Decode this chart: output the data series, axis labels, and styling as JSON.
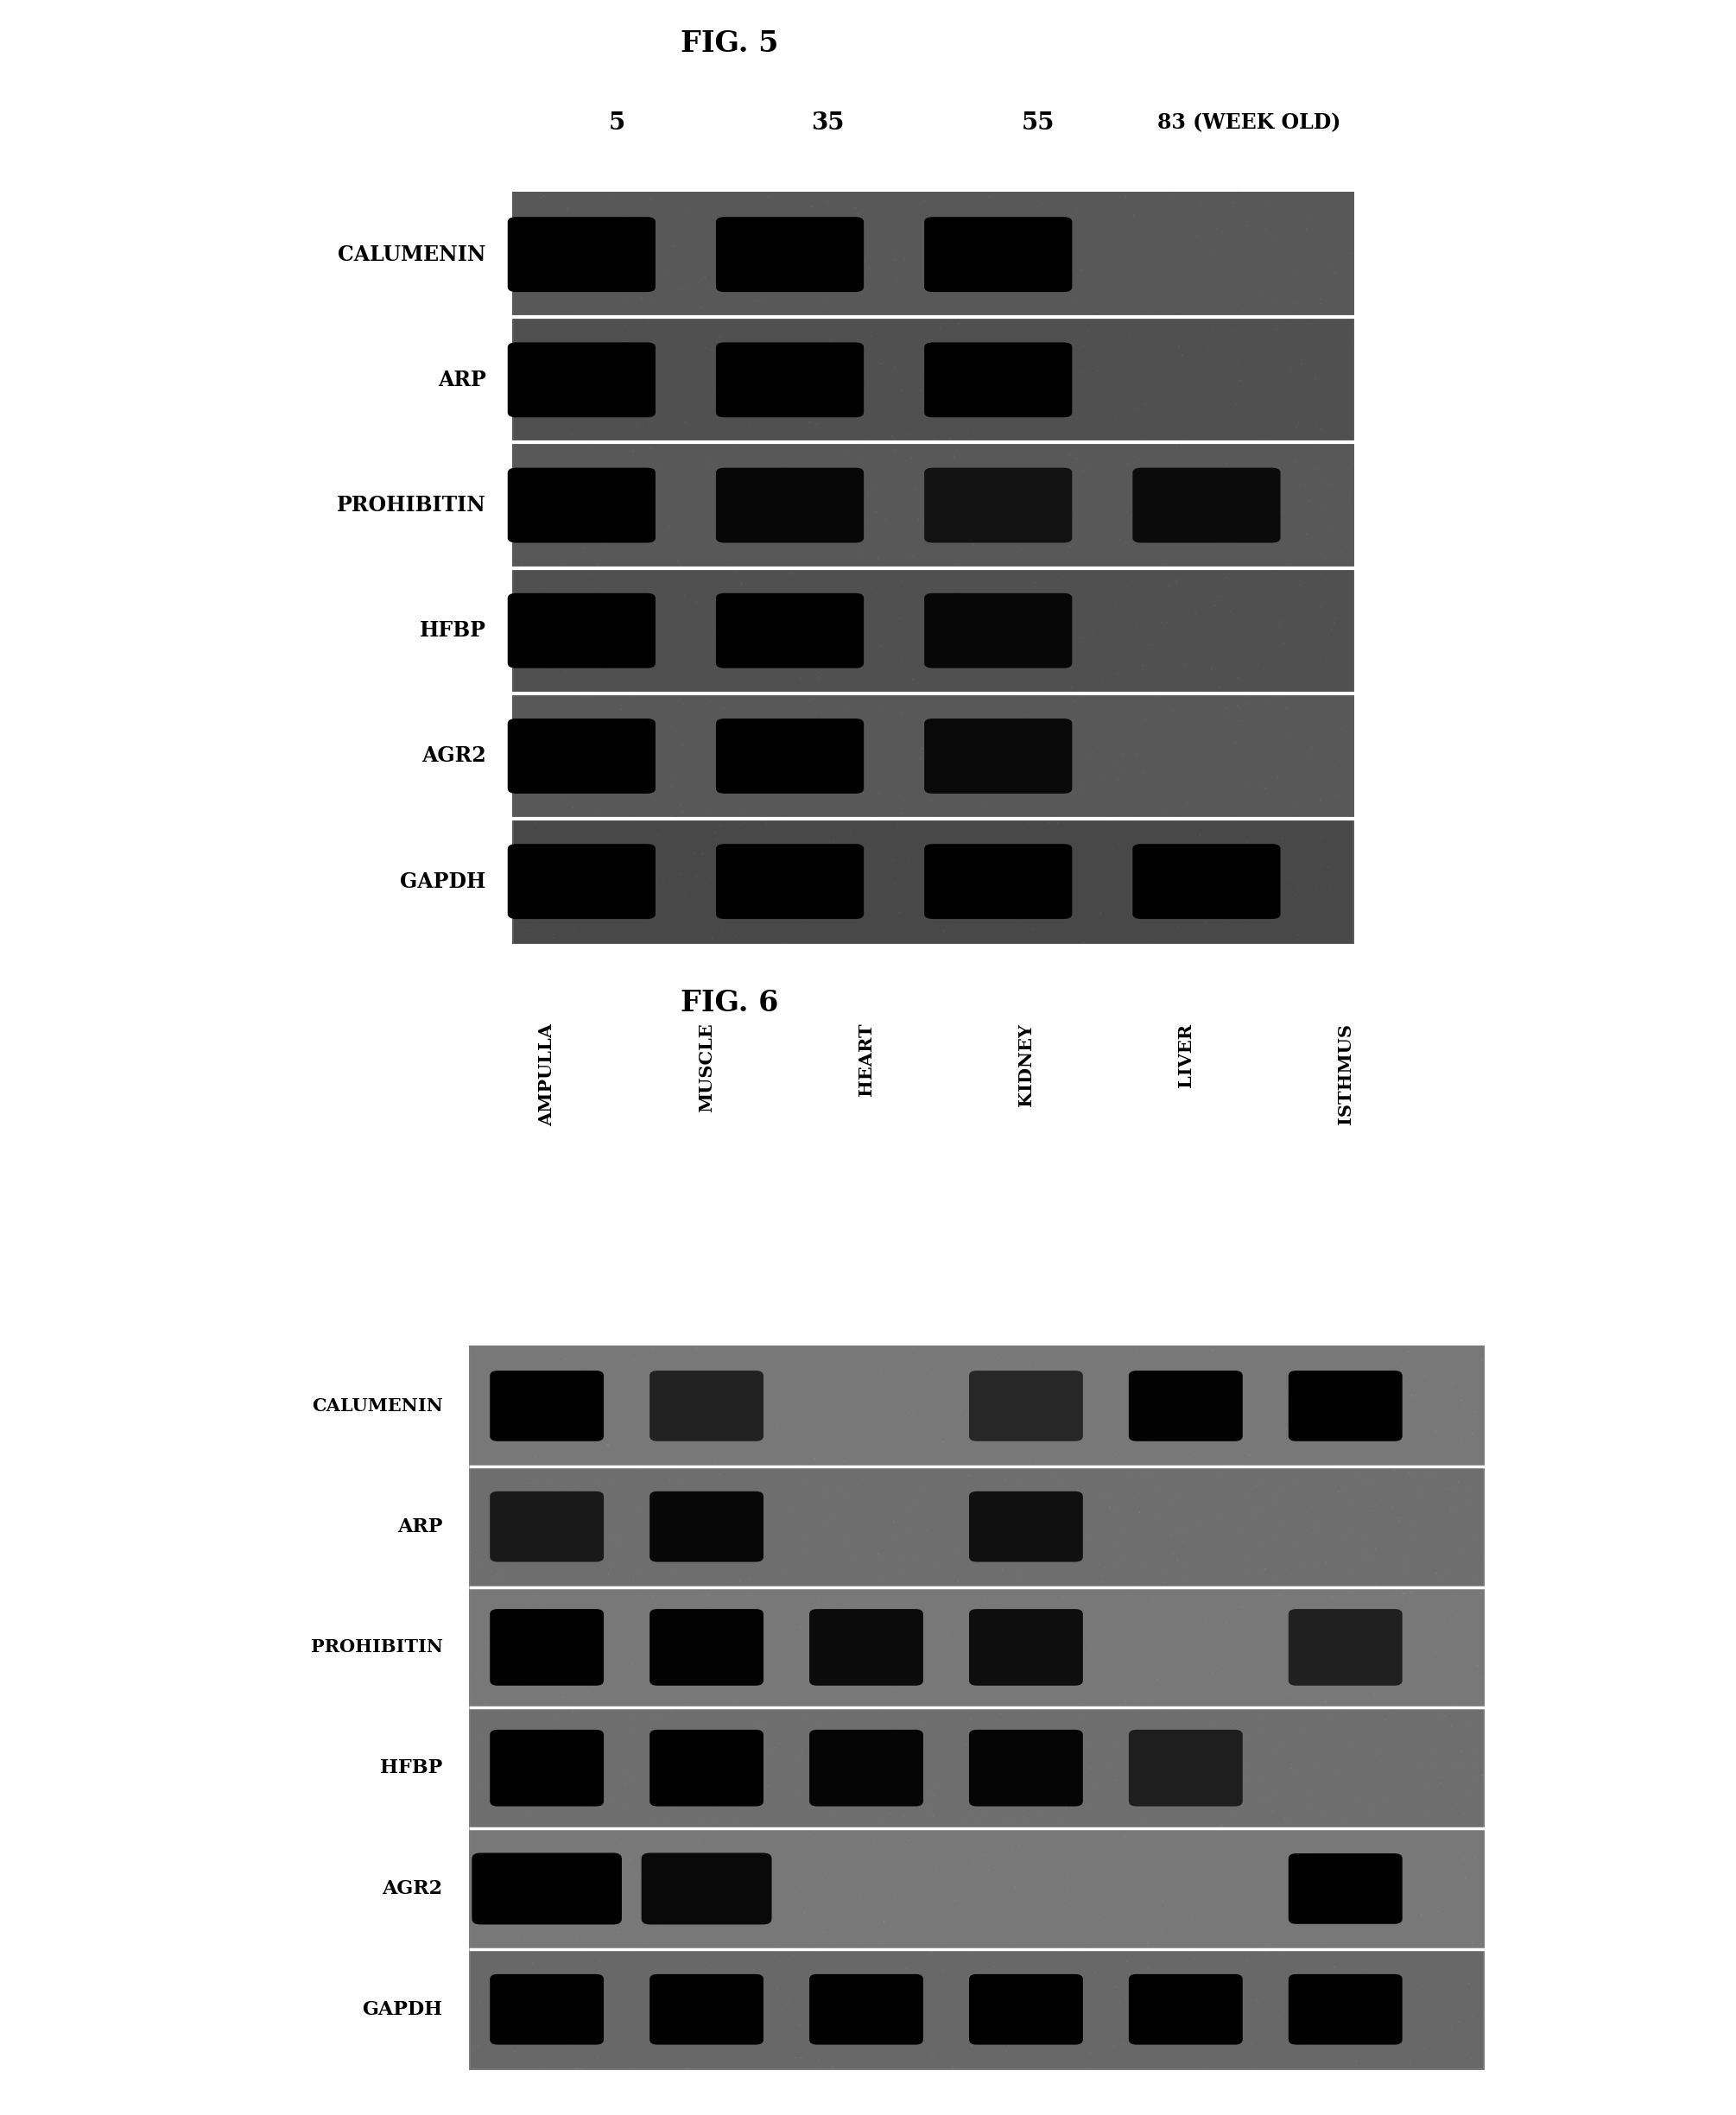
{
  "fig5_title": "FIG. 5",
  "fig6_title": "FIG. 6",
  "fig5_col_labels": [
    "5",
    "35",
    "55",
    "83 (WEEK OLD)"
  ],
  "fig5_row_labels": [
    "CALUMENIN",
    "ARP",
    "PROHIBITIN",
    "HFBP",
    "AGR2",
    "GAPDH"
  ],
  "fig6_col_labels": [
    "AMPULLA",
    "MUSCLE",
    "HEART",
    "KIDNEY",
    "LIVER",
    "ISTHMUS"
  ],
  "fig6_row_labels": [
    "CALUMENIN",
    "ARP",
    "PROHIBITIN",
    "HFBP",
    "AGR2",
    "GAPDH"
  ],
  "background_color": "#ffffff",
  "fig5_gel_bg": "#5a5a5a",
  "fig6_gel_bg": "#7a7a7a",
  "separator_color": "#ffffff",
  "fig5_bands": [
    [
      [
        0.335,
        0.455,
        0.575,
        0.695
      ],
      [
        1.0,
        1.0,
        1.0,
        0.0
      ]
    ],
    [
      [
        0.335,
        0.455,
        0.575,
        0.695
      ],
      [
        1.0,
        1.0,
        1.0,
        0.0
      ]
    ],
    [
      [
        0.335,
        0.455,
        0.575,
        0.695
      ],
      [
        1.0,
        0.85,
        0.6,
        0.75
      ]
    ],
    [
      [
        0.335,
        0.455,
        0.575,
        0.695
      ],
      [
        1.0,
        1.0,
        0.85,
        0.0
      ]
    ],
    [
      [
        0.335,
        0.455,
        0.575,
        0.695
      ],
      [
        1.0,
        1.0,
        0.8,
        0.0
      ]
    ],
    [
      [
        0.335,
        0.455,
        0.575,
        0.695
      ],
      [
        1.0,
        1.0,
        1.0,
        1.0
      ]
    ]
  ],
  "fig6_bands": [
    [
      [
        0.315,
        0.407,
        0.499,
        0.591,
        0.683,
        0.775
      ],
      [
        1.0,
        0.25,
        0.0,
        0.15,
        0.95,
        1.0
      ]
    ],
    [
      [
        0.315,
        0.407,
        0.499,
        0.591,
        0.683,
        0.775
      ],
      [
        0.45,
        0.85,
        0.0,
        0.65,
        0.0,
        0.0
      ]
    ],
    [
      [
        0.315,
        0.407,
        0.499,
        0.591,
        0.683,
        0.775
      ],
      [
        1.0,
        0.95,
        0.75,
        0.7,
        0.0,
        0.3
      ]
    ],
    [
      [
        0.315,
        0.407,
        0.499,
        0.591,
        0.683,
        0.775
      ],
      [
        1.0,
        1.0,
        0.9,
        0.9,
        0.35,
        0.0
      ]
    ],
    [
      [
        0.315,
        0.407,
        0.499,
        0.591,
        0.683,
        0.775
      ],
      [
        1.0,
        0.8,
        0.0,
        0.0,
        0.0,
        1.0
      ]
    ],
    [
      [
        0.315,
        0.407,
        0.499,
        0.591,
        0.683,
        0.775
      ],
      [
        1.0,
        1.0,
        1.0,
        1.0,
        1.0,
        1.0
      ]
    ]
  ],
  "fig5_row_bg": [
    "#585858",
    "#505050",
    "#585858",
    "#505050",
    "#585858",
    "#484848"
  ],
  "fig6_row_bg": [
    "#787878",
    "#6e6e6e",
    "#787878",
    "#6e6e6e",
    "#787878",
    "#686868"
  ]
}
